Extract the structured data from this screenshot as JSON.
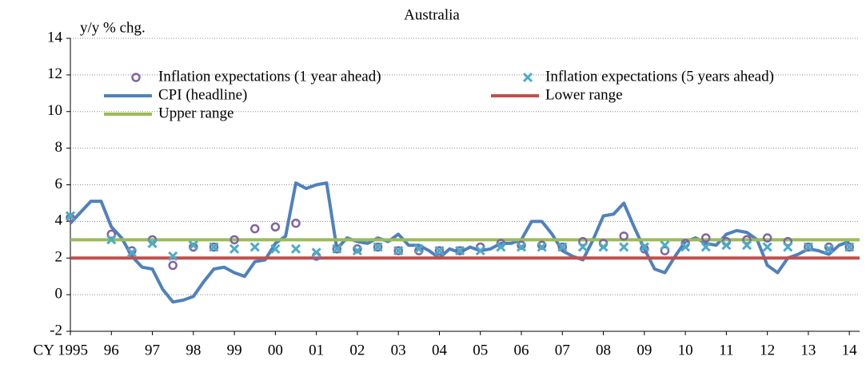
{
  "chart_data": {
    "type": "line",
    "title": "Australia",
    "y_label": "y/y % chg.",
    "xlim": [
      1995,
      2014.25
    ],
    "xticks": [
      {
        "value": 1995,
        "label": "CY 1995"
      },
      {
        "value": 1996,
        "label": "96"
      },
      {
        "value": 1997,
        "label": "97"
      },
      {
        "value": 1998,
        "label": "98"
      },
      {
        "value": 1999,
        "label": "99"
      },
      {
        "value": 2000,
        "label": "00"
      },
      {
        "value": 2001,
        "label": "01"
      },
      {
        "value": 2002,
        "label": "02"
      },
      {
        "value": 2003,
        "label": "03"
      },
      {
        "value": 2004,
        "label": "04"
      },
      {
        "value": 2005,
        "label": "05"
      },
      {
        "value": 2006,
        "label": "06"
      },
      {
        "value": 2007,
        "label": "07"
      },
      {
        "value": 2008,
        "label": "08"
      },
      {
        "value": 2009,
        "label": "09"
      },
      {
        "value": 2010,
        "label": "10"
      },
      {
        "value": 2011,
        "label": "11"
      },
      {
        "value": 2012,
        "label": "12"
      },
      {
        "value": 2013,
        "label": "13"
      },
      {
        "value": 2014,
        "label": "14"
      }
    ],
    "ylim": [
      -2,
      14
    ],
    "yticks": [
      -2,
      0,
      2,
      4,
      6,
      8,
      10,
      12,
      14
    ],
    "grid": true,
    "series": [
      {
        "name": "Inflation expectations (1 year ahead)",
        "color": "#8064a2",
        "marker": "circle",
        "x": [
          1995,
          1995.5,
          1996,
          1996.5,
          1997,
          1997.5,
          1998,
          1998.5,
          1999,
          1999.5,
          2000,
          2000.5,
          2001,
          2001.5,
          2002,
          2002.5,
          2003,
          2003.5,
          2004,
          2004.5,
          2005,
          2005.5,
          2006,
          2006.5,
          2007,
          2007.5,
          2008,
          2008.5,
          2009,
          2009.5,
          2010,
          2010.5,
          2011,
          2011.5,
          2012,
          2012.5,
          2013,
          2013.5,
          2014
        ],
        "values": [
          4.2,
          null,
          3.3,
          2.4,
          3.0,
          1.6,
          2.6,
          2.6,
          3.0,
          3.6,
          3.7,
          3.9,
          2.1,
          2.5,
          2.5,
          2.6,
          2.4,
          2.4,
          2.4,
          2.4,
          2.6,
          2.8,
          2.7,
          2.7,
          2.6,
          2.9,
          2.8,
          3.2,
          2.5,
          2.4,
          2.8,
          3.1,
          2.9,
          3.0,
          3.1,
          2.9,
          2.6,
          2.6,
          2.6
        ]
      },
      {
        "name": "Inflation expectations (5 years ahead)",
        "color": "#4bacc6",
        "marker": "x",
        "x": [
          1995,
          1995.5,
          1996,
          1996.5,
          1997,
          1997.5,
          1998,
          1998.5,
          1999,
          1999.5,
          2000,
          2000.5,
          2001,
          2001.5,
          2002,
          2002.5,
          2003,
          2003.5,
          2004,
          2004.5,
          2005,
          2005.5,
          2006,
          2006.5,
          2007,
          2007.5,
          2008,
          2008.5,
          2009,
          2009.5,
          2010,
          2010.5,
          2011,
          2011.5,
          2012,
          2012.5,
          2013,
          2013.5,
          2014
        ],
        "values": [
          4.3,
          null,
          3.0,
          2.3,
          2.8,
          2.1,
          2.7,
          2.6,
          2.5,
          2.6,
          2.5,
          2.5,
          2.3,
          2.5,
          2.4,
          2.6,
          2.4,
          2.5,
          2.4,
          2.4,
          2.4,
          2.6,
          2.6,
          2.6,
          2.6,
          2.6,
          2.6,
          2.6,
          2.6,
          2.7,
          2.6,
          2.6,
          2.7,
          2.7,
          2.6,
          2.6,
          2.6,
          2.5,
          2.6
        ]
      },
      {
        "name": "CPI (headline)",
        "color": "#4f81bd",
        "marker": "line",
        "x": [
          1995,
          1995.25,
          1995.5,
          1995.75,
          1996,
          1996.25,
          1996.5,
          1996.75,
          1997,
          1997.25,
          1997.5,
          1997.75,
          1998,
          1998.25,
          1998.5,
          1998.75,
          1999,
          1999.25,
          1999.5,
          1999.75,
          2000,
          2000.25,
          2000.5,
          2000.75,
          2001,
          2001.25,
          2001.5,
          2001.75,
          2002,
          2002.25,
          2002.5,
          2002.75,
          2003,
          2003.25,
          2003.5,
          2003.75,
          2004,
          2004.25,
          2004.5,
          2004.75,
          2005,
          2005.25,
          2005.5,
          2005.75,
          2006,
          2006.25,
          2006.5,
          2006.75,
          2007,
          2007.25,
          2007.5,
          2007.75,
          2008,
          2008.25,
          2008.5,
          2008.75,
          2009,
          2009.25,
          2009.5,
          2009.75,
          2010,
          2010.25,
          2010.5,
          2010.75,
          2011,
          2011.25,
          2011.5,
          2011.75,
          2012,
          2012.25,
          2012.5,
          2012.75,
          2013,
          2013.25,
          2013.5,
          2013.75,
          2014
        ],
        "values": [
          3.9,
          4.5,
          5.1,
          5.1,
          3.7,
          3.1,
          2.1,
          1.5,
          1.4,
          0.3,
          -0.4,
          -0.3,
          -0.1,
          0.7,
          1.4,
          1.5,
          1.2,
          1.0,
          1.8,
          1.9,
          2.8,
          3.2,
          6.1,
          5.8,
          6.0,
          6.1,
          2.5,
          3.1,
          2.9,
          2.8,
          3.1,
          2.9,
          3.3,
          2.7,
          2.7,
          2.4,
          2.0,
          2.5,
          2.3,
          2.6,
          2.4,
          2.5,
          2.8,
          2.8,
          3.0,
          4.0,
          4.0,
          3.3,
          2.4,
          2.1,
          1.9,
          3.0,
          4.3,
          4.4,
          5.0,
          3.7,
          2.5,
          1.4,
          1.2,
          2.1,
          2.9,
          3.1,
          2.8,
          2.7,
          3.3,
          3.5,
          3.4,
          3.0,
          1.6,
          1.2,
          2.0,
          2.2,
          2.5,
          2.4,
          2.2,
          2.7,
          2.9
        ]
      },
      {
        "name": "Lower range",
        "color": "#c0504d",
        "marker": "line",
        "x": [
          1995,
          2014.25
        ],
        "values": [
          2,
          2
        ]
      },
      {
        "name": "Upper range",
        "color": "#9bbb59",
        "marker": "line",
        "x": [
          1995,
          2014.25
        ],
        "values": [
          3,
          3
        ]
      }
    ]
  }
}
